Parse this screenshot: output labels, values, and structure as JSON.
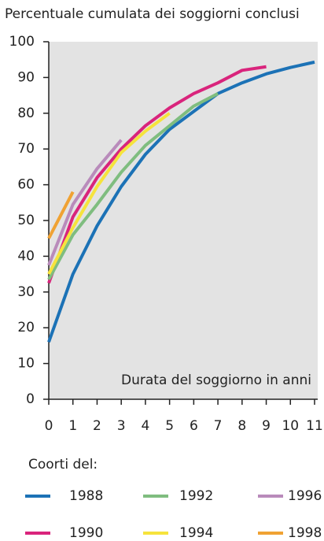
{
  "chart_data": {
    "type": "line",
    "title": "Percentuale cumulata dei soggiorni conclusi",
    "x_label": "Durata del soggiorno in anni",
    "legend_title": "Coorti del:",
    "x": [
      0,
      1,
      2,
      3,
      4,
      5,
      6,
      7,
      8,
      9,
      10,
      11
    ],
    "series": [
      {
        "name": "1988",
        "color": "#1c72b6",
        "values": [
          16,
          35,
          48.5,
          59.5,
          68.5,
          75.5,
          80.5,
          85.5,
          88.5,
          91,
          92.8,
          94.3
        ]
      },
      {
        "name": "1990",
        "color": "#d9247c",
        "values": [
          32.5,
          51,
          62,
          70,
          76.5,
          81.5,
          85.5,
          88.5,
          92,
          93,
          null,
          null
        ]
      },
      {
        "name": "1992",
        "color": "#7fbd7f",
        "values": [
          33.5,
          46,
          54.5,
          63.5,
          71,
          76.5,
          82,
          85.5,
          null,
          null,
          null,
          null
        ]
      },
      {
        "name": "1994",
        "color": "#f6e33c",
        "values": [
          35,
          48,
          59.5,
          69,
          75,
          80,
          null,
          null,
          null,
          null,
          null,
          null
        ]
      },
      {
        "name": "1996",
        "color": "#b98bbb",
        "values": [
          37.5,
          54.5,
          64.5,
          72.5,
          null,
          null,
          null,
          null,
          null,
          null,
          null,
          null
        ]
      },
      {
        "name": "1998",
        "color": "#f0a233",
        "values": [
          45,
          58,
          null,
          null,
          null,
          null,
          null,
          null,
          null,
          null,
          null,
          null
        ]
      }
    ],
    "xlim": [
      0,
      11
    ],
    "ylim": [
      0,
      100
    ],
    "xticks": [
      0,
      1,
      2,
      3,
      4,
      5,
      6,
      7,
      8,
      9,
      10,
      11
    ],
    "yticks": [
      0,
      10,
      20,
      30,
      40,
      50,
      60,
      70,
      80,
      90,
      100
    ]
  }
}
